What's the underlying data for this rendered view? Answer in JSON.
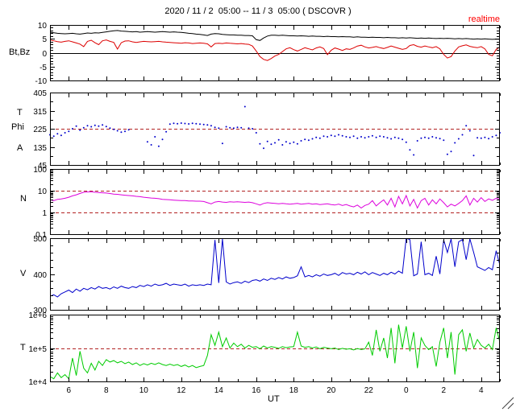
{
  "header": {
    "title": "2020 / 11 / 2  05:00 -- 11 / 3  05:00 ( DSCOVR )",
    "status": "realtime",
    "status_style": "color:#ff0000",
    "status_color": "#ff0000"
  },
  "chart_data": {
    "type": "line",
    "title": "2020 / 11 / 2  05:00 -- 11 / 3  05:00 ( DSCOVR )",
    "annotation": "realtime",
    "x_axis": {
      "label": "UT",
      "range": [
        5,
        29
      ],
      "ticks": [
        {
          "value": 6,
          "label": "6"
        },
        {
          "value": 8,
          "label": "8"
        },
        {
          "value": 10,
          "label": "10"
        },
        {
          "value": 12,
          "label": "12"
        },
        {
          "value": 14,
          "label": "14"
        },
        {
          "value": 16,
          "label": "16"
        },
        {
          "value": 18,
          "label": "18"
        },
        {
          "value": 20,
          "label": "20"
        },
        {
          "value": 22,
          "label": "22"
        },
        {
          "value": 24,
          "label": "0"
        },
        {
          "value": 26,
          "label": "2"
        },
        {
          "value": 28,
          "label": "4"
        }
      ]
    },
    "panels": [
      {
        "id": "bt_bz",
        "ylabel": "Bt,Bz",
        "yscale": "linear",
        "ylim": [
          -10,
          10
        ],
        "yminor_step": 1,
        "yticks": [
          {
            "value": 10,
            "label": "10"
          },
          {
            "value": 5,
            "label": "5"
          },
          {
            "value": 0,
            "label": "0"
          },
          {
            "value": -5,
            "label": "-5"
          },
          {
            "value": -10,
            "label": "-10"
          }
        ],
        "hlines": [
          {
            "value": 0,
            "color": "#000000",
            "style": "solid"
          }
        ],
        "series": [
          {
            "name": "Bt",
            "type": "line",
            "color": "#000000",
            "x_start": 5,
            "x_step": 0.2,
            "values": [
              7.4,
              7.2,
              7.0,
              6.9,
              6.8,
              6.9,
              7.0,
              6.8,
              6.7,
              6.9,
              7.1,
              7.0,
              7.2,
              7.1,
              7.3,
              7.5,
              7.7,
              7.9,
              8.0,
              7.8,
              7.7,
              7.6,
              7.5,
              7.6,
              7.4,
              7.5,
              7.6,
              7.5,
              7.4,
              7.5,
              7.6,
              7.5,
              7.4,
              7.5,
              7.4,
              7.3,
              7.2,
              7.0,
              6.9,
              6.7,
              6.6,
              6.4,
              6.2,
              6.7,
              6.9,
              6.8,
              6.6,
              6.5,
              6.4,
              6.4,
              6.3,
              6.3,
              6.2,
              6.2,
              6.1,
              4.7,
              4.4,
              5.3,
              6.0,
              6.3,
              6.3,
              6.2,
              6.3,
              6.2,
              6.1,
              6.1,
              6.0,
              6.1,
              6.0,
              5.9,
              6.0,
              5.9,
              5.9,
              5.8,
              5.9,
              5.8,
              5.8,
              5.7,
              5.8,
              5.7,
              5.7,
              5.6,
              5.7,
              5.6,
              5.6,
              5.5,
              5.6,
              5.5,
              5.5,
              5.4,
              5.5,
              5.4,
              5.4,
              5.3,
              5.4,
              5.3,
              5.4,
              5.3,
              5.2,
              5.3,
              5.2,
              5.3,
              5.2,
              5.1,
              5.2,
              5.1,
              5.2,
              5.1,
              5.0,
              5.1,
              5.0,
              5.1,
              5.0,
              4.9,
              5.0,
              4.9,
              5.0,
              4.9,
              4.8,
              4.9,
              4.8
            ]
          },
          {
            "name": "Bz",
            "type": "line",
            "color": "#dd0000",
            "x_start": 5,
            "x_step": 0.2,
            "values": [
              4.6,
              4.3,
              4.0,
              3.8,
              4.1,
              4.3,
              3.9,
              3.5,
              3.1,
              2.2,
              4.1,
              4.5,
              3.6,
              2.9,
              4.3,
              4.6,
              4.1,
              3.7,
              1.3,
              3.6,
              4.2,
              4.3,
              3.9,
              3.7,
              3.9,
              4.1,
              4.0,
              3.9,
              4.0,
              4.1,
              3.9,
              3.8,
              3.7,
              3.6,
              3.5,
              3.4,
              3.6,
              3.5,
              3.3,
              3.4,
              3.5,
              3.4,
              3.2,
              2.1,
              3.3,
              3.4,
              3.3,
              3.5,
              3.4,
              3.3,
              3.2,
              3.3,
              3.1,
              3.0,
              2.4,
              0.6,
              -1.4,
              -2.4,
              -2.8,
              -2.1,
              -1.2,
              -0.6,
              0.4,
              1.4,
              1.8,
              1.1,
              0.6,
              1.2,
              1.8,
              1.4,
              1.0,
              1.7,
              2.1,
              1.5,
              -0.7,
              0.9,
              1.7,
              1.3,
              0.8,
              1.4,
              1.2,
              1.7,
              2.4,
              2.7,
              2.1,
              1.7,
              1.9,
              2.2,
              1.8,
              1.5,
              1.9,
              2.4,
              2.0,
              1.6,
              1.2,
              1.5,
              2.6,
              2.9,
              2.3,
              2.0,
              2.4,
              2.1,
              1.8,
              2.2,
              1.4,
              -0.6,
              -1.9,
              -1.4,
              0.6,
              2.1,
              2.5,
              2.8,
              2.3,
              2.0,
              1.8,
              2.2,
              1.4,
              -0.6,
              -1.1,
              1.2,
              2.1
            ]
          }
        ]
      },
      {
        "id": "phi",
        "ylabel_lines": [
          "T",
          "Phi",
          "A"
        ],
        "yscale": "linear",
        "ylim": [
          45,
          405
        ],
        "yminor_step": 45,
        "yticks": [
          {
            "value": 405,
            "label": "405"
          },
          {
            "value": 315,
            "label": "315"
          },
          {
            "value": 225,
            "label": "225"
          },
          {
            "value": 135,
            "label": "135"
          },
          {
            "value": 45,
            "label": "45"
          }
        ],
        "hlines": [
          {
            "value": 225,
            "color": "#b22222",
            "style": "dashed"
          }
        ],
        "series": [
          {
            "name": "Phi",
            "type": "scatter",
            "color": "#0000cc",
            "x_start": 5,
            "x_step": 0.2,
            "values": [
              195,
              188,
              200,
              192,
              205,
              212,
              225,
              238,
              218,
              230,
              240,
              235,
              242,
              238,
              244,
              236,
              228,
              222,
              215,
              208,
              212,
              220,
              null,
              null,
              null,
              null,
              160,
              145,
              185,
              138,
              172,
              210,
              248,
              252,
              250,
              253,
              251,
              249,
              252,
              250,
              248,
              246,
              244,
              240,
              232,
              228,
              152,
              235,
              230,
              228,
              232,
              230,
              335,
              228,
              225,
              205,
              150,
              128,
              162,
              148,
              155,
              170,
              145,
              160,
              152,
              158,
              150,
              165,
              172,
              168,
              175,
              182,
              178,
              188,
              185,
              192,
              188,
              195,
              190,
              185,
              182,
              188,
              178,
              185,
              180,
              185,
              190,
              182,
              188,
              185,
              180,
              175,
              182,
              178,
              172,
              158,
              120,
              95,
              165,
              178,
              182,
              178,
              185,
              180,
              176,
              168,
              98,
              112,
              155,
              175,
              195,
              240,
              215,
              92,
              180,
              178,
              182,
              176,
              185,
              192,
              205
            ]
          }
        ]
      },
      {
        "id": "n",
        "ylabel": "N",
        "yscale": "log",
        "ylim": [
          0.1,
          100
        ],
        "yticks": [
          {
            "value": 100,
            "label": "100"
          },
          {
            "value": 10,
            "label": "10"
          },
          {
            "value": 1,
            "label": "1"
          },
          {
            "value": 0.1,
            "label": "0.1"
          }
        ],
        "hlines": [
          {
            "value": 10,
            "color": "#b22222",
            "style": "dashed"
          },
          {
            "value": 1,
            "color": "#b22222",
            "style": "dashed"
          }
        ],
        "series": [
          {
            "name": "N",
            "type": "line",
            "color": "#dd00dd",
            "x_start": 5,
            "x_step": 0.2,
            "values": [
              3.8,
              3.5,
              4.0,
              4.2,
              4.5,
              5.0,
              5.8,
              6.5,
              7.5,
              8.5,
              8.8,
              9.0,
              8.5,
              8.2,
              8.0,
              7.8,
              7.4,
              7.0,
              6.8,
              6.5,
              6.2,
              6.0,
              5.8,
              5.5,
              5.3,
              5.0,
              4.8,
              4.6,
              4.5,
              4.3,
              4.0,
              3.9,
              3.8,
              3.7,
              3.6,
              3.5,
              3.5,
              3.4,
              3.4,
              3.3,
              3.3,
              3.2,
              2.8,
              2.5,
              3.0,
              3.2,
              3.0,
              2.9,
              3.1,
              3.0,
              3.1,
              3.0,
              2.9,
              3.0,
              2.8,
              2.5,
              2.2,
              2.6,
              2.8,
              2.7,
              2.6,
              2.5,
              2.6,
              2.5,
              2.4,
              2.5,
              2.6,
              2.4,
              2.5,
              2.6,
              2.4,
              2.5,
              2.3,
              2.4,
              2.5,
              2.3,
              2.2,
              2.4,
              2.1,
              2.3,
              2.0,
              1.8,
              2.2,
              1.6,
              2.1,
              2.4,
              3.5,
              2.0,
              2.8,
              3.8,
              2.2,
              4.5,
              1.8,
              5.5,
              2.5,
              6.0,
              2.0,
              4.0,
              1.6,
              3.5,
              4.5,
              2.2,
              3.8,
              2.5,
              4.2,
              2.8,
              1.8,
              2.4,
              2.0,
              2.6,
              3.5,
              5.8,
              2.2,
              4.5,
              3.0,
              4.8,
              3.2,
              4.2,
              3.6,
              4.5,
              4.0
            ]
          }
        ]
      },
      {
        "id": "v",
        "ylabel": "V",
        "yscale": "linear",
        "ylim": [
          300,
          500
        ],
        "yminor_step": 20,
        "yticks": [
          {
            "value": 500,
            "label": "500"
          },
          {
            "value": 400,
            "label": "400"
          },
          {
            "value": 300,
            "label": "300"
          }
        ],
        "hlines": [],
        "series": [
          {
            "name": "V",
            "type": "line",
            "color": "#0000cc",
            "x_start": 5,
            "x_step": 0.2,
            "values": [
              338,
              342,
              336,
              345,
              350,
              355,
              348,
              358,
              352,
              360,
              356,
              362,
              358,
              365,
              360,
              362,
              358,
              364,
              360,
              366,
              362,
              360,
              365,
              362,
              368,
              365,
              370,
              366,
              372,
              368,
              370,
              374,
              368,
              372,
              370,
              368,
              372,
              366,
              370,
              368,
              370,
              368,
              372,
              370,
              495,
              375,
              498,
              378,
              372,
              376,
              378,
              374,
              380,
              376,
              382,
              384,
              380,
              386,
              382,
              388,
              385,
              390,
              386,
              392,
              388,
              390,
              395,
              420,
              392,
              396,
              392,
              398,
              394,
              400,
              396,
              398,
              402,
              396,
              404,
              400,
              402,
              398,
              405,
              400,
              406,
              398,
              404,
              400,
              396,
              402,
              398,
              405,
              400,
              408,
              402,
              500,
              496,
              395,
              400,
              490,
              398,
              402,
              396,
              450,
              400,
              495,
              460,
              498,
              420,
              490,
              496,
              440,
              498,
              460,
              420,
              415,
              410,
              418,
              412,
              465,
              425
            ]
          }
        ]
      },
      {
        "id": "t",
        "ylabel": "T",
        "yscale": "log",
        "ylim": [
          10000,
          1000000
        ],
        "yticks": [
          {
            "value": 1000000,
            "label": "1e+6"
          },
          {
            "value": 100000,
            "label": "1e+5"
          },
          {
            "value": 10000,
            "label": "1e+4"
          }
        ],
        "hlines": [
          {
            "value": 100000,
            "color": "#b22222",
            "style": "dashed"
          }
        ],
        "series": [
          {
            "name": "T",
            "type": "line",
            "color": "#00cc00",
            "x_start": 5,
            "x_step": 0.2,
            "values": [
              14000,
              12000,
              18000,
              13000,
              16000,
              12000,
              50000,
              15000,
              80000,
              25000,
              18000,
              35000,
              22000,
              40000,
              30000,
              45000,
              38000,
              42000,
              36000,
              40000,
              34000,
              38000,
              32000,
              36000,
              30000,
              34000,
              31000,
              35000,
              32000,
              36000,
              32000,
              30000,
              33000,
              30000,
              32000,
              28000,
              31000,
              27000,
              30000,
              26000,
              28000,
              30000,
              60000,
              250000,
              120000,
              300000,
              110000,
              200000,
              100000,
              140000,
              110000,
              130000,
              100000,
              120000,
              105000,
              110000,
              95000,
              115000,
              100000,
              110000,
              105000,
              98000,
              110000,
              102000,
              108000,
              110000,
              300000,
              115000,
              105000,
              110000,
              100000,
              108000,
              95000,
              105000,
              100000,
              95000,
              100000,
              90000,
              98000,
              92000,
              95000,
              88000,
              96000,
              90000,
              94000,
              150000,
              60000,
              350000,
              80000,
              200000,
              50000,
              400000,
              35000,
              500000,
              100000,
              450000,
              80000,
              300000,
              25000,
              200000,
              120000,
              90000,
              110000,
              28000,
              150000,
              400000,
              50000,
              300000,
              16000,
              250000,
              350000,
              80000,
              280000,
              100000,
              180000,
              120000,
              100000,
              130000,
              90000,
              400000,
              150000
            ]
          }
        ]
      }
    ]
  }
}
